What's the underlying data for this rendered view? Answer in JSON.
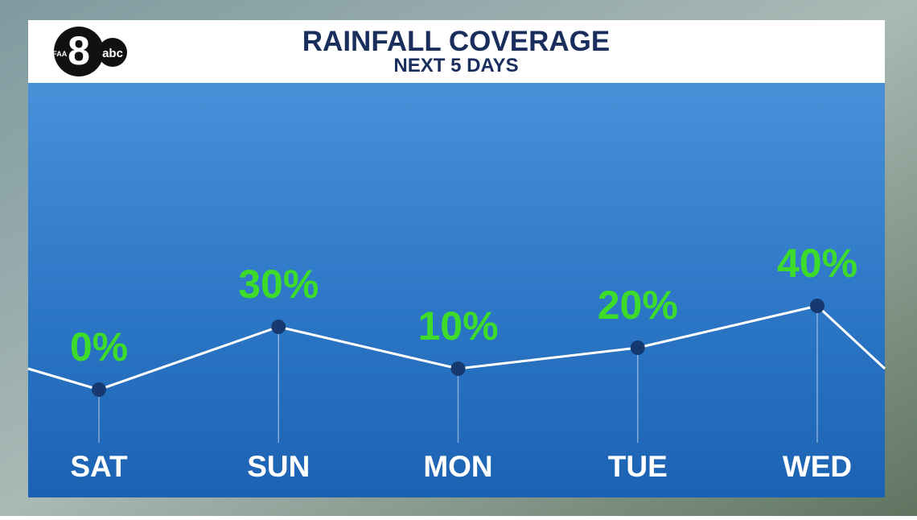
{
  "logo": {
    "station": "WFAA",
    "channel": "8",
    "network": "abc"
  },
  "chart_data": {
    "type": "line",
    "title": "RAINFALL COVERAGE",
    "subtitle": "NEXT 5 DAYS",
    "categories": [
      "SAT",
      "SUN",
      "MON",
      "TUE",
      "WED"
    ],
    "values": [
      0,
      30,
      10,
      20,
      40
    ],
    "value_labels": [
      "0%",
      "30%",
      "10%",
      "20%",
      "40%"
    ],
    "color": "#ffffff",
    "marker_color": "#163a70",
    "label_color": "#3ddc2b"
  }
}
